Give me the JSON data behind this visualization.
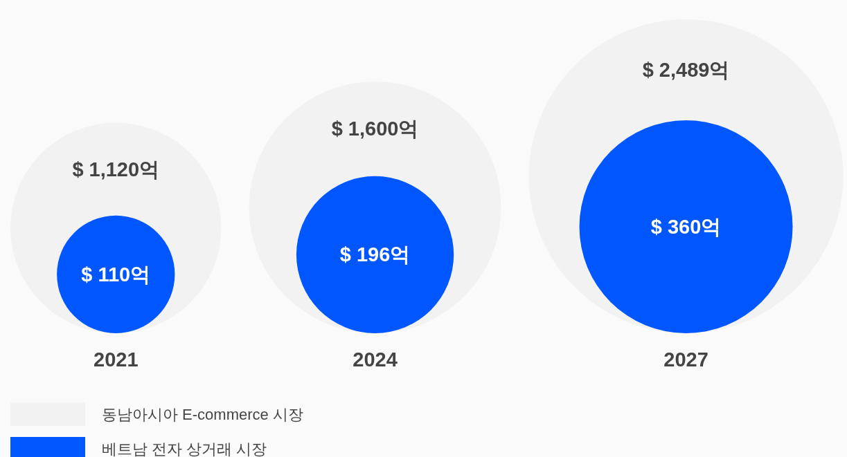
{
  "chart_data": {
    "type": "other",
    "categories": [
      "2021",
      "2024",
      "2027"
    ],
    "series": [
      {
        "name": "동남아시아 E-commerce 시장",
        "color": "#f2f2f2",
        "values": [
          1120,
          1600,
          2489
        ],
        "value_labels": [
          "$ 1,120억",
          "$ 1,600억",
          "$ 2,489억"
        ]
      },
      {
        "name": "베트남 전자 상거래 시장",
        "color": "#0057ff",
        "values": [
          110,
          196,
          360
        ],
        "value_labels": [
          "$ 110억",
          "$ 196억",
          "$ 360억"
        ]
      }
    ],
    "legend": "bottom left"
  }
}
